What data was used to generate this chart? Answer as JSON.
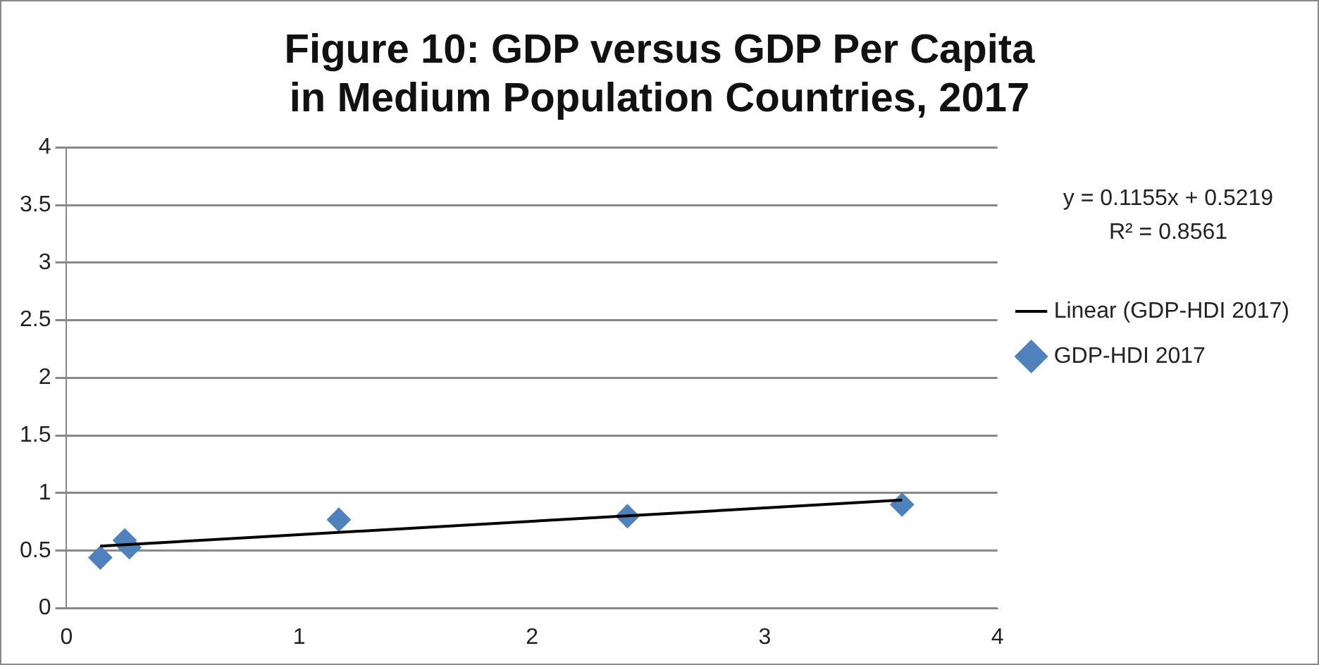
{
  "chart_data": {
    "type": "scatter",
    "title": "Figure 10: GDP versus GDP Per Capita in Medium Population Countries, 2017",
    "xlim": [
      0,
      4
    ],
    "xticks": [
      0,
      1,
      2,
      3,
      4
    ],
    "ylim": [
      0,
      4
    ],
    "yticks": [
      0,
      0.5,
      1,
      1.5,
      2,
      2.5,
      3,
      3.5,
      4
    ],
    "grid": "y",
    "legend": "right",
    "marker": "diamond",
    "annotations": [
      "y = 0.1155x + 0.5219",
      "R² = 0.8561"
    ],
    "series": [
      {
        "name": "GDP-HDI 2017",
        "color": "#4f81bd",
        "x": [
          0.145,
          0.25,
          0.27,
          1.17,
          2.41,
          3.59
        ],
        "values": [
          0.44,
          0.59,
          0.53,
          0.77,
          0.8,
          0.9
        ]
      },
      {
        "name": "Linear (GDP-HDI 2017)",
        "type": "line",
        "marker": "none",
        "color": "#000000",
        "x": [
          0.145,
          3.59
        ],
        "values": [
          0.54,
          0.94
        ]
      }
    ]
  }
}
